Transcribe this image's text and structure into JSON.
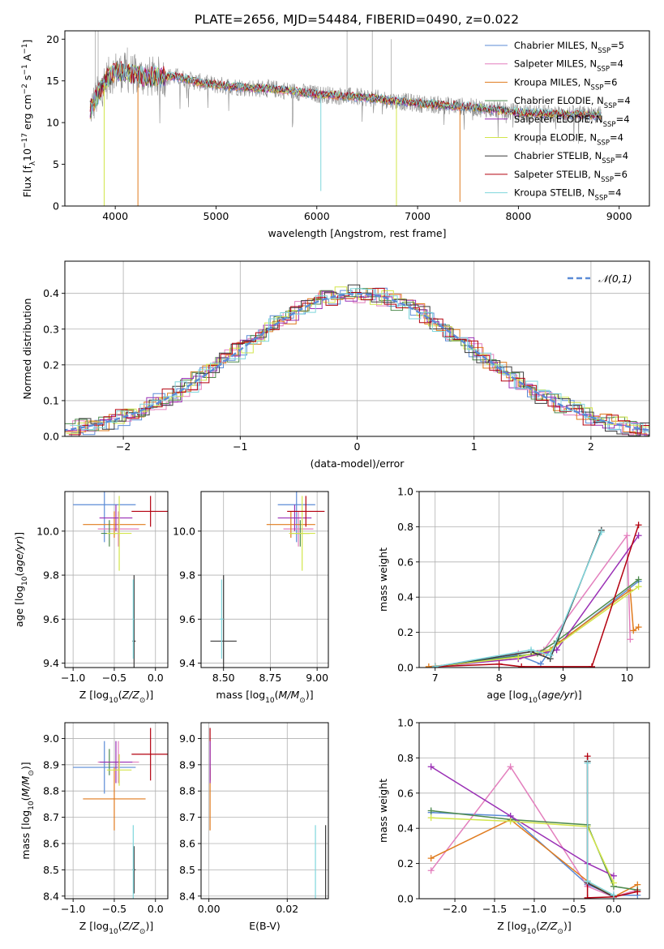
{
  "figure_title": "PLATE=2656, MJD=54484, FIBERID=0490, z=0.022",
  "models": [
    {
      "name": "Chabrier MILES",
      "nssp": "5",
      "color": "#5b8bd6"
    },
    {
      "name": "Salpeter MILES",
      "nssp": "4",
      "color": "#e37fbd"
    },
    {
      "name": "Kroupa MILES",
      "nssp": "6",
      "color": "#e07b1e"
    },
    {
      "name": "Chabrier ELODIE",
      "nssp": "4",
      "color": "#4d8a4d"
    },
    {
      "name": "Salpeter ELODIE",
      "nssp": "4",
      "color": "#9a2fb5"
    },
    {
      "name": "Kroupa ELODIE",
      "nssp": "4",
      "color": "#d2e54a"
    },
    {
      "name": "Chabrier STELIB",
      "nssp": "4",
      "color": "#3b3b3b"
    },
    {
      "name": "Salpeter STELIB",
      "nssp": "6",
      "color": "#b3000f"
    },
    {
      "name": "Kroupa STELIB",
      "nssp": "4",
      "color": "#7fd6dc"
    }
  ],
  "chart_data": [
    {
      "id": "spectrum",
      "type": "line",
      "xlabel": "wavelength [Angstrom, rest frame]",
      "ylabel": "Flux [f_λ 10^-17 erg cm^-2 s^-1 A^-1]",
      "xlim": [
        3500,
        9300
      ],
      "ylim": [
        0,
        21
      ],
      "xticks": [
        4000,
        5000,
        6000,
        7000,
        8000,
        9000
      ],
      "yticks": [
        0,
        5,
        10,
        15,
        20
      ],
      "legend_loc": "upper right",
      "continuum": [
        [
          3750,
          11.5
        ],
        [
          3900,
          15.0
        ],
        [
          4000,
          16.2
        ],
        [
          4300,
          15.5
        ],
        [
          4600,
          15.5
        ],
        [
          4800,
          14.9
        ],
        [
          5000,
          14.5
        ],
        [
          5300,
          14.2
        ],
        [
          5600,
          14.0
        ],
        [
          6000,
          13.4
        ],
        [
          6500,
          13.0
        ],
        [
          7000,
          12.3
        ],
        [
          7500,
          11.9
        ],
        [
          8000,
          11.2
        ],
        [
          8500,
          11.0
        ],
        [
          8800,
          10.9
        ]
      ],
      "model_dips": [
        {
          "model": 5,
          "x": 3890,
          "y": 0.0
        },
        {
          "model": 2,
          "x": 4225,
          "y": 0.0
        },
        {
          "model": 8,
          "x": 6040,
          "y": 1.8
        },
        {
          "model": 5,
          "x": 6790,
          "y": 0.0
        },
        {
          "model": 2,
          "x": 7420,
          "y": 0.5
        }
      ]
    },
    {
      "id": "residual-histogram",
      "type": "histogram",
      "xlabel": "(data-model)/error",
      "ylabel": "Normed distribution",
      "xlim": [
        -2.5,
        2.5
      ],
      "ylim": [
        0,
        0.49
      ],
      "xticks": [
        -2,
        -1,
        0,
        1,
        2
      ],
      "yticks": [
        0.0,
        0.1,
        0.2,
        0.3,
        0.4
      ],
      "legend_label": "𝒩(0,1)",
      "reference_curve": "normal",
      "bin_width": 0.1,
      "bins_from": -2.5,
      "bins_to": 2.5,
      "noise_per_model": 0.025
    },
    {
      "id": "age-vs-metallicity",
      "type": "errorbar",
      "xlabel": "Z [log10(Z/Z⊙)]",
      "ylabel": "age  [log10(age/yr)]",
      "xlim": [
        -1.1,
        0.15
      ],
      "ylim": [
        9.38,
        10.18
      ],
      "xticks": [
        -1.0,
        -0.5,
        0.0
      ],
      "yticks": [
        9.4,
        9.6,
        9.8,
        10.0
      ],
      "points": [
        {
          "model": 0,
          "x": -0.62,
          "y": 10.12,
          "xerr": 0.38,
          "yerr": 0.17
        },
        {
          "model": 1,
          "x": -0.45,
          "y": 10.01,
          "xerr": 0.25,
          "yerr": 0.08
        },
        {
          "model": 2,
          "x": -0.5,
          "y": 10.03,
          "xerr": 0.38,
          "yerr": 0.06
        },
        {
          "model": 3,
          "x": -0.56,
          "y": 9.99,
          "xerr": 0.1,
          "yerr": 0.06
        },
        {
          "model": 4,
          "x": -0.48,
          "y": 10.06,
          "xerr": 0.2,
          "yerr": 0.06
        },
        {
          "model": 5,
          "x": -0.44,
          "y": 9.99,
          "xerr": 0.15,
          "yerr": 0.17
        },
        {
          "model": 6,
          "x": -0.26,
          "y": 9.5,
          "xerr": 0.02,
          "yerr": 0.3
        },
        {
          "model": 7,
          "x": -0.06,
          "y": 10.09,
          "xerr": 0.23,
          "yerr": 0.07
        },
        {
          "model": 8,
          "x": -0.27,
          "y": 9.6,
          "xerr": 0.01,
          "yerr": 0.18
        }
      ]
    },
    {
      "id": "age-vs-mass",
      "type": "errorbar",
      "xlabel": "mass [log10(M/M⊙)]",
      "ylabel": "",
      "xlim": [
        8.38,
        9.06
      ],
      "ylim": [
        9.38,
        10.18
      ],
      "xticks": [
        8.5,
        8.75,
        9.0
      ],
      "yticks": [
        9.4,
        9.6,
        9.8,
        10.0
      ],
      "points": [
        {
          "model": 0,
          "x": 8.89,
          "y": 10.12,
          "xerr": 0.1,
          "yerr": 0.17
        },
        {
          "model": 1,
          "x": 8.9,
          "y": 10.01,
          "xerr": 0.08,
          "yerr": 0.08
        },
        {
          "model": 2,
          "x": 8.86,
          "y": 10.03,
          "xerr": 0.13,
          "yerr": 0.06
        },
        {
          "model": 3,
          "x": 8.91,
          "y": 9.99,
          "xerr": 0.05,
          "yerr": 0.06
        },
        {
          "model": 4,
          "x": 8.88,
          "y": 10.06,
          "xerr": 0.09,
          "yerr": 0.06
        },
        {
          "model": 5,
          "x": 8.92,
          "y": 9.99,
          "xerr": 0.07,
          "yerr": 0.17
        },
        {
          "model": 6,
          "x": 8.5,
          "y": 9.5,
          "xerr": 0.07,
          "yerr": 0.3
        },
        {
          "model": 7,
          "x": 8.94,
          "y": 10.09,
          "xerr": 0.1,
          "yerr": 0.07
        },
        {
          "model": 8,
          "x": 8.49,
          "y": 9.6,
          "xerr": 0.01,
          "yerr": 0.18
        }
      ]
    },
    {
      "id": "mass-weight-vs-age",
      "type": "line",
      "xlabel": "age  [log10(age/yr)]",
      "ylabel": "mass weight",
      "xlim": [
        6.75,
        10.35
      ],
      "ylim": [
        0,
        1.0
      ],
      "xticks": [
        7,
        8,
        9,
        10
      ],
      "yticks": [
        0.0,
        0.2,
        0.4,
        0.6,
        0.8,
        1.0
      ],
      "series": [
        {
          "model": 0,
          "x": [
            7.0,
            8.3,
            8.65,
            8.8,
            10.18
          ],
          "y": [
            0.005,
            0.07,
            0.02,
            0.1,
            0.49
          ]
        },
        {
          "model": 1,
          "x": [
            7.0,
            8.3,
            8.7,
            10.0,
            10.05
          ],
          "y": [
            0.005,
            0.08,
            0.1,
            0.75,
            0.16
          ]
        },
        {
          "model": 2,
          "x": [
            6.9,
            8.3,
            8.7,
            10.05,
            10.1,
            10.18
          ],
          "y": [
            0.005,
            0.05,
            0.08,
            0.44,
            0.21,
            0.23
          ]
        },
        {
          "model": 3,
          "x": [
            7.0,
            8.6,
            8.9,
            10.18
          ],
          "y": [
            0.005,
            0.08,
            0.15,
            0.5
          ]
        },
        {
          "model": 4,
          "x": [
            7.0,
            8.3,
            8.9,
            10.18
          ],
          "y": [
            0.005,
            0.05,
            0.1,
            0.75
          ]
        },
        {
          "model": 5,
          "x": [
            7.0,
            8.3,
            8.8,
            10.18
          ],
          "y": [
            0.005,
            0.06,
            0.1,
            0.46
          ]
        },
        {
          "model": 6,
          "x": [
            7.0,
            8.5,
            8.8,
            9.6
          ],
          "y": [
            0.005,
            0.09,
            0.05,
            0.78
          ]
        },
        {
          "model": 7,
          "x": [
            7.0,
            8.0,
            8.35,
            9.45,
            10.18
          ],
          "y": [
            0.005,
            0.02,
            0.005,
            0.005,
            0.81
          ]
        },
        {
          "model": 8,
          "x": [
            7.0,
            8.5,
            8.8,
            9.6
          ],
          "y": [
            0.005,
            0.1,
            0.07,
            0.77
          ]
        }
      ]
    },
    {
      "id": "mass-vs-metallicity",
      "type": "errorbar",
      "xlabel": "Z [log10(Z/Z⊙)]",
      "ylabel": "mass [log10(M/M⊙)]",
      "xlim": [
        -1.1,
        0.15
      ],
      "ylim": [
        8.39,
        9.06
      ],
      "xticks": [
        -1.0,
        -0.5,
        0.0
      ],
      "yticks": [
        8.4,
        8.5,
        8.6,
        8.7,
        8.8,
        8.9,
        9.0
      ],
      "points": [
        {
          "model": 0,
          "x": -0.62,
          "y": 8.89,
          "xerr": 0.38,
          "yerr": 0.1
        },
        {
          "model": 1,
          "x": -0.45,
          "y": 8.91,
          "xerr": 0.25,
          "yerr": 0.08
        },
        {
          "model": 2,
          "x": -0.5,
          "y": 8.77,
          "xerr": 0.38,
          "yerr": 0.12
        },
        {
          "model": 3,
          "x": -0.56,
          "y": 8.91,
          "xerr": 0.1,
          "yerr": 0.05
        },
        {
          "model": 4,
          "x": -0.48,
          "y": 8.91,
          "xerr": 0.2,
          "yerr": 0.08
        },
        {
          "model": 5,
          "x": -0.44,
          "y": 8.88,
          "xerr": 0.15,
          "yerr": 0.06
        },
        {
          "model": 6,
          "x": -0.26,
          "y": 8.5,
          "xerr": 0.02,
          "yerr": 0.09
        },
        {
          "model": 7,
          "x": -0.06,
          "y": 8.94,
          "xerr": 0.23,
          "yerr": 0.1
        },
        {
          "model": 8,
          "x": -0.27,
          "y": 8.5,
          "xerr": 0.01,
          "yerr": 0.17
        }
      ]
    },
    {
      "id": "mass-vs-ebv",
      "type": "errorbar",
      "xlabel": "E(B-V)",
      "ylabel": "",
      "xlim": [
        -0.002,
        0.0305
      ],
      "ylim": [
        8.39,
        9.06
      ],
      "xticks": [
        0.0,
        0.02
      ],
      "yticks": [
        8.4,
        8.5,
        8.6,
        8.7,
        8.8,
        8.9,
        9.0
      ],
      "points": [
        {
          "model": 2,
          "x": 0.0003,
          "y": 8.77,
          "xerr": 0.0,
          "yerr": 0.12
        },
        {
          "model": 7,
          "x": 0.0003,
          "y": 8.94,
          "xerr": 0.0,
          "yerr": 0.1
        },
        {
          "model": 4,
          "x": 0.0003,
          "y": 8.91,
          "xerr": 0.0,
          "yerr": 0.08
        },
        {
          "model": 8,
          "x": 0.0272,
          "y": 8.5,
          "xerr": 0.0,
          "yerr": 0.17
        },
        {
          "model": 6,
          "x": 0.0298,
          "y": 8.5,
          "xerr": 0.0,
          "yerr": 0.17
        }
      ]
    },
    {
      "id": "mass-weight-vs-metallicity",
      "type": "line",
      "xlabel": "Z [log10(Z/Z⊙)]",
      "ylabel": "mass weight",
      "xlim": [
        -2.45,
        0.45
      ],
      "ylim": [
        0,
        1.0
      ],
      "xticks": [
        -2.0,
        -1.5,
        -1.0,
        -0.5,
        0.0
      ],
      "yticks": [
        0.0,
        0.2,
        0.4,
        0.6,
        0.8,
        1.0
      ],
      "series": [
        {
          "model": 0,
          "x": [
            -2.3,
            -1.3,
            -0.33,
            0.0,
            0.3
          ],
          "y": [
            0.49,
            0.47,
            0.08,
            0.02,
            0.02
          ]
        },
        {
          "model": 1,
          "x": [
            -2.3,
            -1.3,
            -0.33,
            0.0,
            0.3
          ],
          "y": [
            0.16,
            0.75,
            0.07,
            0.01,
            0.05
          ]
        },
        {
          "model": 2,
          "x": [
            -2.3,
            -1.3,
            -0.33,
            0.0,
            0.3
          ],
          "y": [
            0.23,
            0.45,
            0.1,
            0.01,
            0.08
          ]
        },
        {
          "model": 3,
          "x": [
            -2.3,
            -1.3,
            -0.33,
            0.0,
            0.3
          ],
          "y": [
            0.5,
            0.45,
            0.42,
            0.07,
            0.05
          ]
        },
        {
          "model": 4,
          "x": [
            -2.3,
            -1.3,
            -0.33,
            0.0
          ],
          "y": [
            0.75,
            0.47,
            0.2,
            0.13
          ]
        },
        {
          "model": 5,
          "x": [
            -2.3,
            -1.3,
            -0.33,
            0.0
          ],
          "y": [
            0.46,
            0.44,
            0.41,
            0.09
          ]
        },
        {
          "model": 6,
          "x": [
            -0.33,
            -0.33,
            0.0
          ],
          "y": [
            0.78,
            0.09,
            0.01
          ]
        },
        {
          "model": 7,
          "x": [
            -0.33,
            -0.33,
            0.0,
            0.3
          ],
          "y": [
            0.81,
            0.005,
            0.01,
            0.04
          ]
        },
        {
          "model": 8,
          "x": [
            -0.33,
            -0.33,
            0.0
          ],
          "y": [
            0.77,
            0.1,
            0.02
          ]
        }
      ]
    }
  ]
}
